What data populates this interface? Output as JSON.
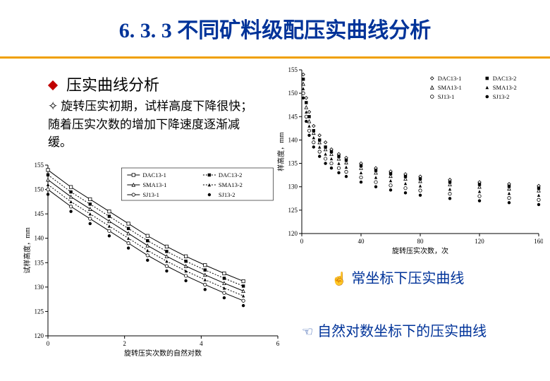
{
  "title": "6. 3. 3 不同矿料级配压实曲线分析",
  "title_color": "#003399",
  "title_border_color": "#f0a000",
  "heading": {
    "text": "压实曲线分析",
    "bullet_color": "#c00000",
    "fontsize": 22,
    "color": "#000000"
  },
  "sub_bullet": {
    "marker": "✧",
    "text": "旋转压实初期，试样高度下降很快；随着压实次数的增加下降速度逐渐减缓。",
    "color": "#000000"
  },
  "chart_linear": {
    "type": "scatter",
    "xlim": [
      0,
      160
    ],
    "ylim": [
      120,
      155
    ],
    "xtick_step": 40,
    "ytick_step": 5,
    "xlabel": "旋转压实次数，次",
    "ylabel": "样高度，mm",
    "label_fontsize": 10,
    "tick_fontsize": 9,
    "background_color": "#ffffff",
    "axis_color": "#000000",
    "series": [
      {
        "name": "DAC13-1",
        "color": "#000000",
        "marker": "diamond-open",
        "data": [
          [
            1,
            154
          ],
          [
            3,
            149
          ],
          [
            5,
            146
          ],
          [
            8,
            143
          ],
          [
            12,
            141
          ],
          [
            16,
            139.5
          ],
          [
            20,
            138
          ],
          [
            25,
            137
          ],
          [
            30,
            136.2
          ],
          [
            40,
            135
          ],
          [
            50,
            134
          ],
          [
            60,
            133.3
          ],
          [
            70,
            132.7
          ],
          [
            80,
            132.2
          ],
          [
            100,
            131.5
          ],
          [
            120,
            131
          ],
          [
            140,
            130.6
          ],
          [
            160,
            130.2
          ]
        ]
      },
      {
        "name": "DAC13-2",
        "color": "#000000",
        "marker": "square",
        "data": [
          [
            1,
            153
          ],
          [
            3,
            148
          ],
          [
            5,
            145
          ],
          [
            8,
            142
          ],
          [
            12,
            140
          ],
          [
            16,
            138.5
          ],
          [
            20,
            137.5
          ],
          [
            25,
            136.5
          ],
          [
            30,
            135.7
          ],
          [
            40,
            134.5
          ],
          [
            50,
            133.5
          ],
          [
            60,
            132.8
          ],
          [
            70,
            132.2
          ],
          [
            80,
            131.7
          ],
          [
            100,
            131
          ],
          [
            120,
            130.5
          ],
          [
            140,
            130.1
          ],
          [
            160,
            129.7
          ]
        ]
      },
      {
        "name": "SMA13-1",
        "color": "#000000",
        "marker": "triangle-open",
        "data": [
          [
            1,
            152
          ],
          [
            3,
            147
          ],
          [
            5,
            144
          ],
          [
            8,
            141.5
          ],
          [
            12,
            139.5
          ],
          [
            16,
            138
          ],
          [
            20,
            137
          ],
          [
            25,
            136
          ],
          [
            30,
            135.2
          ],
          [
            40,
            134
          ],
          [
            50,
            133
          ],
          [
            60,
            132.3
          ],
          [
            70,
            131.7
          ],
          [
            80,
            131.2
          ],
          [
            100,
            130.5
          ],
          [
            120,
            130
          ],
          [
            140,
            129.6
          ],
          [
            160,
            129.2
          ]
        ]
      },
      {
        "name": "SMA13-2",
        "color": "#000000",
        "marker": "triangle",
        "data": [
          [
            1,
            151
          ],
          [
            3,
            146
          ],
          [
            5,
            143
          ],
          [
            8,
            140.5
          ],
          [
            12,
            138.5
          ],
          [
            16,
            137
          ],
          [
            20,
            136
          ],
          [
            25,
            135
          ],
          [
            30,
            134.2
          ],
          [
            40,
            133
          ],
          [
            50,
            132
          ],
          [
            60,
            131.3
          ],
          [
            70,
            130.7
          ],
          [
            80,
            130.2
          ],
          [
            100,
            129.5
          ],
          [
            120,
            129
          ],
          [
            140,
            128.6
          ],
          [
            160,
            128.2
          ]
        ]
      },
      {
        "name": "SJ13-1",
        "color": "#000000",
        "marker": "circle-open",
        "data": [
          [
            1,
            150
          ],
          [
            3,
            145
          ],
          [
            5,
            142
          ],
          [
            8,
            139.5
          ],
          [
            12,
            137.5
          ],
          [
            16,
            136
          ],
          [
            20,
            135
          ],
          [
            25,
            134
          ],
          [
            30,
            133.2
          ],
          [
            40,
            132
          ],
          [
            50,
            131
          ],
          [
            60,
            130.3
          ],
          [
            70,
            129.7
          ],
          [
            80,
            129.2
          ],
          [
            100,
            128.5
          ],
          [
            120,
            128
          ],
          [
            140,
            127.6
          ],
          [
            160,
            127.2
          ]
        ]
      },
      {
        "name": "SJ13-2",
        "color": "#000000",
        "marker": "circle",
        "data": [
          [
            1,
            149
          ],
          [
            3,
            144
          ],
          [
            5,
            141
          ],
          [
            8,
            138.5
          ],
          [
            12,
            136.5
          ],
          [
            16,
            135
          ],
          [
            20,
            134
          ],
          [
            25,
            133
          ],
          [
            30,
            132.2
          ],
          [
            40,
            131
          ],
          [
            50,
            130
          ],
          [
            60,
            129.3
          ],
          [
            70,
            128.7
          ],
          [
            80,
            128.2
          ],
          [
            100,
            127.5
          ],
          [
            120,
            127
          ],
          [
            140,
            126.6
          ],
          [
            160,
            126.2
          ]
        ]
      }
    ]
  },
  "chart_log": {
    "type": "scatter",
    "xlim": [
      0,
      6
    ],
    "ylim": [
      120,
      155
    ],
    "xtick_step": 2,
    "ytick_step": 5,
    "xlabel": "旋转压实次数的自然对数",
    "ylabel": "试样高度，mm",
    "label_fontsize": 10,
    "tick_fontsize": 9,
    "background_color": "#ffffff",
    "axis_color": "#000000",
    "legend_border": "#000000",
    "series": [
      {
        "name": "DAC13-1",
        "color": "#000000",
        "marker": "square-open",
        "line": true,
        "data": [
          [
            0,
            154
          ],
          [
            0.6,
            150.5
          ],
          [
            1.1,
            148
          ],
          [
            1.6,
            145.5
          ],
          [
            2.1,
            143
          ],
          [
            2.6,
            140.5
          ],
          [
            3.1,
            138.3
          ],
          [
            3.6,
            136.3
          ],
          [
            4.1,
            134.5
          ],
          [
            4.6,
            132.8
          ],
          [
            5.1,
            131.2
          ]
        ]
      },
      {
        "name": "DAC13-2",
        "color": "#000000",
        "marker": "square-dot",
        "line": "dotted",
        "data": [
          [
            0,
            153
          ],
          [
            0.6,
            149.5
          ],
          [
            1.1,
            147
          ],
          [
            1.6,
            144.5
          ],
          [
            2.1,
            142
          ],
          [
            2.6,
            139.5
          ],
          [
            3.1,
            137.3
          ],
          [
            3.6,
            135.3
          ],
          [
            4.1,
            133.5
          ],
          [
            4.6,
            131.8
          ],
          [
            5.1,
            130.2
          ]
        ]
      },
      {
        "name": "SMA13-1",
        "color": "#000000",
        "marker": "triangle-open",
        "line": true,
        "data": [
          [
            0,
            152
          ],
          [
            0.6,
            148.5
          ],
          [
            1.1,
            146
          ],
          [
            1.6,
            143.5
          ],
          [
            2.1,
            141
          ],
          [
            2.6,
            138.5
          ],
          [
            3.1,
            136.3
          ],
          [
            3.6,
            134.3
          ],
          [
            4.1,
            132.5
          ],
          [
            4.6,
            130.8
          ],
          [
            5.1,
            129.2
          ]
        ]
      },
      {
        "name": "SMA13-2",
        "color": "#000000",
        "marker": "triangle-dot",
        "line": "dotted",
        "data": [
          [
            0,
            151
          ],
          [
            0.6,
            147.5
          ],
          [
            1.1,
            145
          ],
          [
            1.6,
            142.5
          ],
          [
            2.1,
            140
          ],
          [
            2.6,
            137.5
          ],
          [
            3.1,
            135.3
          ],
          [
            3.6,
            133.3
          ],
          [
            4.1,
            131.5
          ],
          [
            4.6,
            129.8
          ],
          [
            5.1,
            128.2
          ]
        ]
      },
      {
        "name": "SJ13-1",
        "color": "#000000",
        "marker": "circle-open",
        "line": true,
        "data": [
          [
            0,
            150
          ],
          [
            0.6,
            146.5
          ],
          [
            1.1,
            144
          ],
          [
            1.6,
            141.5
          ],
          [
            2.1,
            139
          ],
          [
            2.6,
            136.5
          ],
          [
            3.1,
            134.3
          ],
          [
            3.6,
            132.3
          ],
          [
            4.1,
            130.5
          ],
          [
            4.6,
            128.8
          ],
          [
            5.1,
            127.2
          ]
        ]
      },
      {
        "name": "SJ13-2",
        "color": "#000000",
        "marker": "circle",
        "line": false,
        "data": [
          [
            0,
            149
          ],
          [
            0.6,
            145.5
          ],
          [
            1.1,
            143
          ],
          [
            1.6,
            140.5
          ],
          [
            2.1,
            138
          ],
          [
            2.6,
            135.5
          ],
          [
            3.1,
            133.3
          ],
          [
            3.6,
            131.3
          ],
          [
            4.1,
            129.5
          ],
          [
            4.6,
            127.8
          ],
          [
            5.1,
            126.2
          ]
        ]
      }
    ]
  },
  "caption_linear": {
    "hand": "☝",
    "text": "常坐标下压实曲线",
    "color": "#003399"
  },
  "caption_log": {
    "hand": "☜",
    "text": "自然对数坐标下的压实曲线",
    "color": "#003399"
  }
}
